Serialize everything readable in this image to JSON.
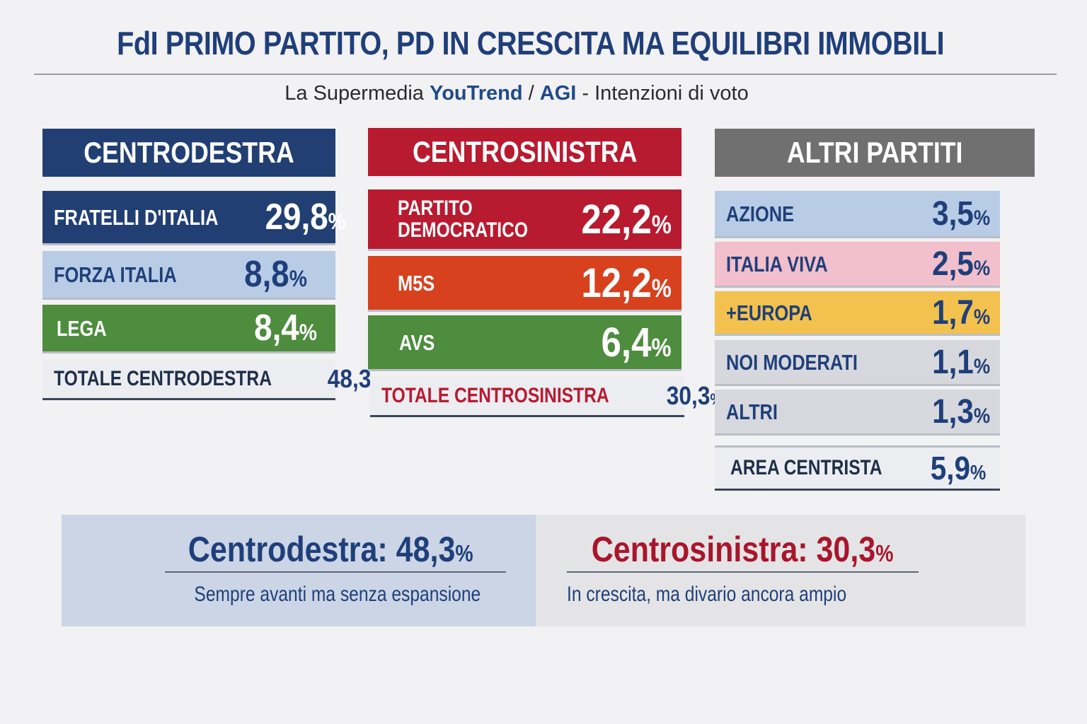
{
  "header": {
    "title": "FdI PRIMO PARTITO, PD IN CRESCITA MA EQUILIBRI IMMOBILI",
    "subtitle_pre": "La Supermedia ",
    "subtitle_brand1": "YouTrend",
    "subtitle_sep": " / ",
    "subtitle_brand2": "AGI",
    "subtitle_post": " - Intenzioni di voto"
  },
  "colors": {
    "centrodestra": "#213f73",
    "centrosinistra": "#b81a30",
    "altri": "#707070"
  },
  "chart_data": {
    "type": "table",
    "title": "Intenzioni di voto",
    "groups": [
      {
        "name": "CENTRODESTRA",
        "parties": [
          {
            "name": "FRATELLI D'ITALIA",
            "value": 29.8,
            "label": "29,8"
          },
          {
            "name": "FORZA ITALIA",
            "value": 8.8,
            "label": "8,8"
          },
          {
            "name": "LEGA",
            "value": 8.4,
            "label": "8,4"
          }
        ],
        "total_label": "TOTALE CENTRODESTRA",
        "total_value": 48.3,
        "total_text": "48,3"
      },
      {
        "name": "CENTROSINISTRA",
        "parties": [
          {
            "name": "PARTITO DEMOCRATICO",
            "value": 22.2,
            "label": "22,2"
          },
          {
            "name": "M5S",
            "value": 12.2,
            "label": "12,2"
          },
          {
            "name": "AVS",
            "value": 6.4,
            "label": "6,4"
          }
        ],
        "total_label": "TOTALE CENTROSINISTRA",
        "total_value": 30.3,
        "total_text": "30,3"
      },
      {
        "name": "ALTRI PARTITI",
        "parties": [
          {
            "name": "AZIONE",
            "value": 3.5,
            "label": "3,5"
          },
          {
            "name": "ITALIA VIVA",
            "value": 2.5,
            "label": "2,5"
          },
          {
            "name": "+EUROPA",
            "value": 1.7,
            "label": "1,7"
          },
          {
            "name": "NOI MODERATI",
            "value": 1.1,
            "label": "1,1"
          },
          {
            "name": "ALTRI",
            "value": 1.3,
            "label": "1,3"
          }
        ],
        "total_label": "AREA CENTRISTA",
        "total_value": 5.9,
        "total_text": "5,9"
      }
    ],
    "percent_sign": "%"
  },
  "summary": {
    "left": {
      "title": "Centrodestra: 48,3",
      "subtitle": "Sempre avanti ma senza espansione"
    },
    "right": {
      "title": "Centrosinistra: 30,3",
      "subtitle": "In crescita, ma divario ancora ampio"
    }
  }
}
